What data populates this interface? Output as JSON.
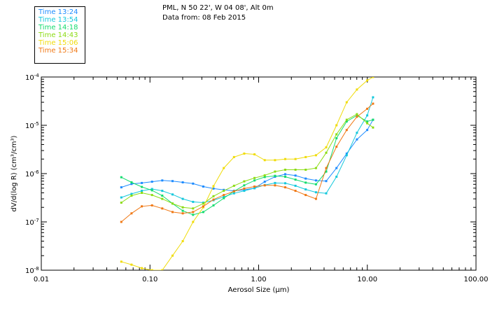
{
  "header": {
    "station": "PML, N 50 22', W 04 08', Alt 0m",
    "date": "Data from: 08 Feb 2015"
  },
  "chart_data": {
    "type": "line",
    "xscale": "log",
    "yscale": "log",
    "xlabel": "Aerosol Size (µm)",
    "ylabel": "dV/d(log R) (cm³/cm³)",
    "xlim": [
      0.01,
      100
    ],
    "ylim": [
      1e-08,
      0.0001
    ],
    "xticks": [
      {
        "v": 0.01,
        "label": "0.01"
      },
      {
        "v": 0.1,
        "label": "0.10"
      },
      {
        "v": 1,
        "label": "1.00"
      },
      {
        "v": 10,
        "label": "10.00"
      },
      {
        "v": 100,
        "label": "100.00"
      }
    ],
    "yticks": [
      {
        "v": 1e-08,
        "mant": "10",
        "exp": "-8"
      },
      {
        "v": 1e-07,
        "mant": "10",
        "exp": "-7"
      },
      {
        "v": 1e-06,
        "mant": "10",
        "exp": "-6"
      },
      {
        "v": 1e-05,
        "mant": "10",
        "exp": "-5"
      },
      {
        "v": 0.0001,
        "mant": "10",
        "exp": "-4"
      }
    ],
    "x": [
      0.0545,
      0.0677,
      0.0841,
      0.1045,
      0.1298,
      0.1613,
      0.2004,
      0.249,
      0.3094,
      0.3844,
      0.4776,
      0.5934,
      0.7372,
      0.916,
      1.138,
      1.414,
      1.757,
      2.182,
      2.711,
      3.369,
      4.185,
      5.2,
      6.46,
      8.026,
      9.972,
      11.29
    ],
    "series": [
      {
        "name": "Time 13:24",
        "color": "#1e8cff",
        "values": [
          5.2e-07,
          6.1e-07,
          6.4e-07,
          6.8e-07,
          7.2e-07,
          7e-07,
          6.6e-07,
          6.2e-07,
          5.4e-07,
          4.9e-07,
          4.6e-07,
          4.4e-07,
          4.6e-07,
          5e-07,
          6.8e-07,
          8.6e-07,
          9.7e-07,
          9.1e-07,
          7.9e-07,
          7.2e-07,
          7e-07,
          1.3e-06,
          2.6e-06,
          5.1e-06,
          8e-06,
          1.3e-05
        ]
      },
      {
        "name": "Time 13:54",
        "color": "#14c8dc",
        "values": [
          3.2e-07,
          3.8e-07,
          4.4e-07,
          4.8e-07,
          4.4e-07,
          3.7e-07,
          3e-07,
          2.6e-07,
          2.5e-07,
          2.8e-07,
          3.3e-07,
          3.9e-07,
          4.4e-07,
          5e-07,
          5.8e-07,
          6.4e-07,
          6.3e-07,
          5.6e-07,
          4.7e-07,
          4.1e-07,
          3.9e-07,
          8.6e-07,
          2.4e-06,
          7e-06,
          1.6e-05,
          3.8e-05
        ]
      },
      {
        "name": "Time 14:18",
        "color": "#14dc6e",
        "values": [
          8.4e-07,
          6.6e-07,
          5.3e-07,
          4.5e-07,
          3.5e-07,
          2.4e-07,
          1.7e-07,
          1.4e-07,
          1.6e-07,
          2.2e-07,
          3.1e-07,
          4.3e-07,
          5.7e-07,
          7.2e-07,
          8.5e-07,
          9e-07,
          8.6e-07,
          7.5e-07,
          6.5e-07,
          6e-07,
          1.1e-06,
          5.4e-06,
          1.2e-05,
          1.6e-05,
          1.2e-05,
          1.3e-05
        ]
      },
      {
        "name": "Time 14:43",
        "color": "#8cdc14",
        "values": [
          2.5e-07,
          3.5e-07,
          4e-07,
          3.6e-07,
          3e-07,
          2.4e-07,
          2e-07,
          1.9e-07,
          2.4e-07,
          3.4e-07,
          4.4e-07,
          5.6e-07,
          6.9e-07,
          8.1e-07,
          9.2e-07,
          1.1e-06,
          1.2e-06,
          1.2e-06,
          1.2e-06,
          1.3e-06,
          2.7e-06,
          6.5e-06,
          1.3e-05,
          1.7e-05,
          1.1e-05,
          9e-06
        ]
      },
      {
        "name": "Time 15:06",
        "color": "#f0dc0a",
        "values": [
          1.5e-08,
          1.3e-08,
          1.1e-08,
          1e-08,
          1e-08,
          2e-08,
          4e-08,
          1e-07,
          2e-07,
          5.5e-07,
          1.3e-06,
          2.2e-06,
          2.6e-06,
          2.5e-06,
          1.9e-06,
          1.9e-06,
          2e-06,
          2e-06,
          2.2e-06,
          2.4e-06,
          3.5e-06,
          1e-05,
          3e-05,
          5.5e-05,
          8.5e-05,
          0.0001
        ]
      },
      {
        "name": "Time 15:34",
        "color": "#f07814",
        "values": [
          1e-07,
          1.5e-07,
          2.1e-07,
          2.2e-07,
          1.9e-07,
          1.6e-07,
          1.5e-07,
          1.6e-07,
          2.1e-07,
          2.9e-07,
          3.6e-07,
          4.3e-07,
          4.9e-07,
          5.4e-07,
          5.7e-07,
          5.7e-07,
          5.2e-07,
          4.4e-07,
          3.6e-07,
          3e-07,
          1.3e-06,
          3.6e-06,
          8e-06,
          1.5e-05,
          2.2e-05,
          2.8e-05
        ]
      }
    ]
  }
}
